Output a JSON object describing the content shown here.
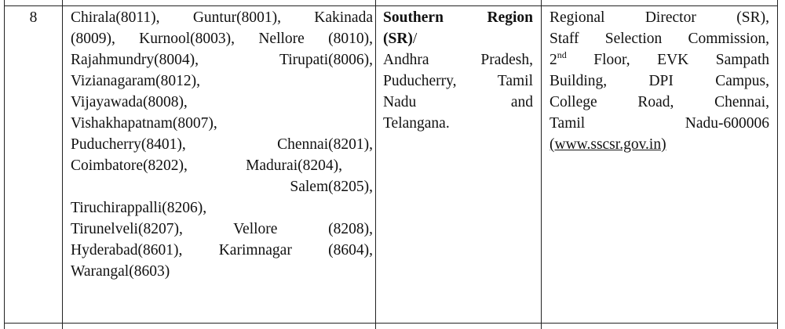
{
  "table": {
    "rows": [
      {
        "cells": [
          {
            "text": "8"
          },
          {
            "lines": [
              "Chirala(8011), Guntur(8001), Kakinada",
              "(8009), Kurnool(8003), Nellore (8010),",
              "Rajahmundry(8004), Tirupati(8006),",
              "Vizianagaram(8012),",
              "Vijayawada(8008),",
              "Vishakhapatnam(8007),",
              "Puducherry(8401), Chennai(8201),",
              "Coimbatore(8202), Madurai(8204),",
              "Salem(8205),",
              "Tiruchirappalli(8206),",
              "Tirunelveli(8207), Vellore (8208),",
              "Hyderabad(8601), Karimnagar (8604),",
              "Warangal(8603)"
            ]
          },
          {
            "lines": [
              "Southern Region",
              [
                "(SR)",
                "/"
              ],
              "Andhra Pradesh,",
              "Puducherry, Tamil",
              "Nadu and",
              "Telangana."
            ]
          },
          {
            "lines": [
              "Regional Director (SR),",
              "Staff Selection Commission,",
              [
                "2",
                "nd",
                " Floor, EVK Sampath"
              ],
              "Building, DPI Campus,",
              "College Road, Chennai,",
              "Tamil Nadu-600006",
              "(www.sscsr.gov.in)"
            ]
          }
        ]
      }
    ]
  }
}
